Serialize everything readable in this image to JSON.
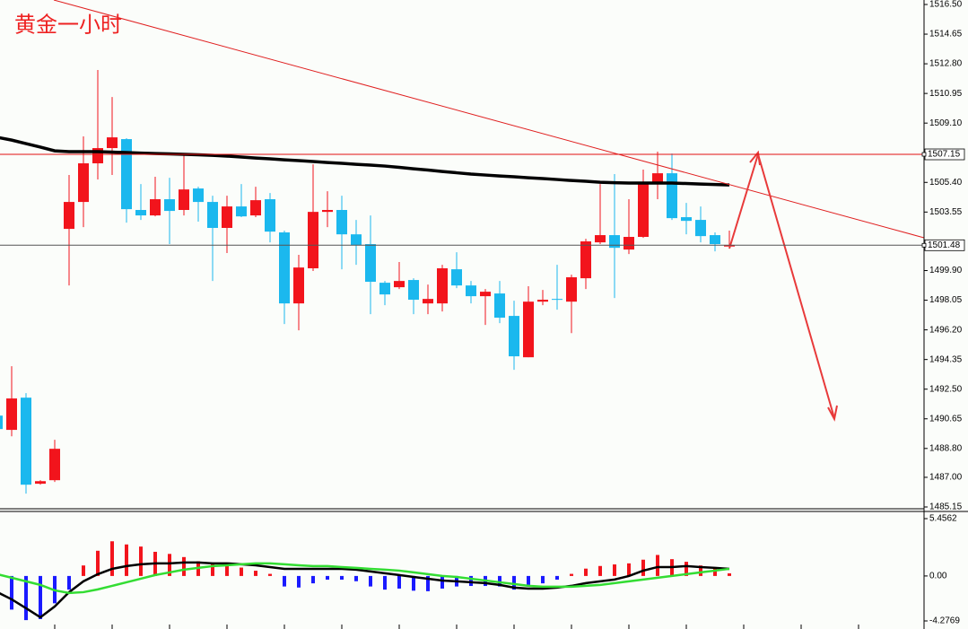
{
  "chart_data": [
    {
      "type": "candlestick",
      "title": "黄金一小时",
      "open": [
        1490.85,
        1489.96,
        1491.97,
        1486.6,
        1486.82,
        1502.5,
        1504.18,
        1506.59,
        1507.54,
        1508.1,
        1503.68,
        1503.34,
        1504.35,
        1503.68,
        1505.02,
        1504.18,
        1502.56,
        1503.9,
        1503.34,
        1504.35,
        1502.28,
        1497.85,
        1500.04,
        1503.56,
        1503.68,
        1502.16,
        1501.55,
        1499.14,
        1498.86,
        1499.31,
        1497.85,
        1497.85,
        1499.98,
        1498.97,
        1498.3,
        1498.47,
        1497.07,
        1494.49,
        1497.96,
        1498.13,
        1497.96,
        1499.42,
        1501.66,
        1502.11,
        1501.21,
        1502.0,
        1505.36,
        1505.97,
        1503.23,
        1503.06,
        1502.11,
        1501.4
      ],
      "high": [
        1490.85,
        1493.93,
        1492.25,
        1486.82,
        1489.34,
        1505.86,
        1508.27,
        1512.41,
        1510.73,
        1508.16,
        1505.3,
        1505.75,
        1505.69,
        1507.09,
        1505.13,
        1504.57,
        1504.57,
        1505.3,
        1505.13,
        1504.74,
        1502.39,
        1500.88,
        1506.53,
        1504.85,
        1504.57,
        1503.06,
        1503.34,
        1499.25,
        1500.43,
        1499.42,
        1499.03,
        1500.26,
        1501.04,
        1499.25,
        1498.75,
        1499.25,
        1498.02,
        1498.92,
        1498.69,
        1500.26,
        1499.64,
        1501.88,
        1505.3,
        1505.92,
        1504.35,
        1506.2,
        1507.32,
        1507.2,
        1504.12,
        1503.9,
        1502.28,
        1502.39
      ],
      "low": [
        1490.01,
        1489.56,
        1485.98,
        1486.54,
        1486.71,
        1498.97,
        1502.61,
        1505.58,
        1505.86,
        1502.89,
        1503.06,
        1503.28,
        1501.55,
        1503.34,
        1502.95,
        1499.25,
        1500.99,
        1503.23,
        1503.23,
        1501.66,
        1496.56,
        1496.17,
        1499.87,
        1502.61,
        1499.98,
        1500.26,
        1497.18,
        1497.74,
        1498.75,
        1497.18,
        1497.18,
        1497.35,
        1498.8,
        1497.85,
        1496.51,
        1496.62,
        1493.71,
        1494.49,
        1497.74,
        1497.46,
        1496.0,
        1498.75,
        1501.55,
        1498.19,
        1500.93,
        1501.94,
        1504.35,
        1503.06,
        1502.16,
        1501.66,
        1501.1,
        1501.27
      ],
      "close": [
        1490.01,
        1491.92,
        1486.54,
        1486.76,
        1488.78,
        1504.18,
        1506.59,
        1507.54,
        1508.21,
        1503.73,
        1503.34,
        1504.35,
        1503.62,
        1504.96,
        1504.18,
        1502.56,
        1503.9,
        1503.28,
        1504.29,
        1502.33,
        1497.85,
        1500.09,
        1503.56,
        1503.68,
        1502.16,
        1501.49,
        1499.2,
        1498.41,
        1499.25,
        1498.08,
        1498.13,
        1500.04,
        1498.97,
        1498.3,
        1498.58,
        1496.96,
        1494.55,
        1497.96,
        1498.08,
        1498.08,
        1499.48,
        1501.72,
        1502.11,
        1501.32,
        1502.0,
        1505.3,
        1505.97,
        1503.17,
        1503.0,
        1502.05,
        1501.55,
        1501.48
      ],
      "up_color": "#f2141c",
      "down_color": "#1bb8ee",
      "overlay": {
        "color": "#000000",
        "values": [
          1508.21,
          1508.04,
          1507.82,
          1507.6,
          1507.37,
          1507.32,
          1507.32,
          1507.32,
          1507.29,
          1507.26,
          1507.23,
          1507.2,
          1507.18,
          1507.15,
          1507.12,
          1507.09,
          1507.04,
          1506.98,
          1506.92,
          1506.87,
          1506.81,
          1506.76,
          1506.7,
          1506.64,
          1506.59,
          1506.53,
          1506.48,
          1506.42,
          1506.34,
          1506.25,
          1506.17,
          1506.08,
          1506.0,
          1505.92,
          1505.86,
          1505.8,
          1505.75,
          1505.69,
          1505.64,
          1505.58,
          1505.52,
          1505.47,
          1505.41,
          1505.38,
          1505.36,
          1505.36,
          1505.36,
          1505.36,
          1505.33,
          1505.3,
          1505.27,
          1505.24
        ]
      },
      "levels": [
        {
          "value": 1507.15,
          "color": "#e01010"
        },
        {
          "value": 1501.48,
          "color": "#555555"
        }
      ],
      "ylim": [
        1485.15,
        1516.5
      ],
      "yticks": [
        {
          "value": 1516.5,
          "label": "1516.50"
        },
        1514.65,
        {
          "value": 1512.8,
          "label": "1512.80"
        },
        1510.95,
        {
          "value": 1509.1,
          "label": "1509.10"
        },
        {
          "value": 1505.4,
          "label": "1505.40"
        },
        1503.55,
        {
          "value": 1499.9,
          "label": "1499.90"
        },
        1498.05,
        {
          "value": 1496.2,
          "label": "1496.20"
        },
        1494.35,
        {
          "value": 1492.5,
          "label": "1492.50"
        },
        1490.65,
        {
          "value": 1488.8,
          "label": "1488.80"
        },
        {
          "value": 1487,
          "label": "1487.00"
        },
        1485.15
      ]
    },
    {
      "type": "macd",
      "histogram": [
        -1.8,
        -3.2,
        -4.2,
        -4.1,
        -2.6,
        -1.3,
        1.0,
        2.4,
        3.3,
        3.0,
        2.8,
        2.3,
        2.1,
        1.8,
        1.4,
        1.2,
        1.0,
        0.8,
        0.5,
        0.2,
        -1.0,
        -1.1,
        -0.7,
        -0.35,
        -0.35,
        -0.5,
        -1.0,
        -1.3,
        -1.2,
        -1.4,
        -1.45,
        -1.2,
        -1.0,
        -0.95,
        -0.95,
        -1.0,
        -1.3,
        -0.85,
        -0.7,
        -0.35,
        0.2,
        0.7,
        0.95,
        1.1,
        1.2,
        1.55,
        2.0,
        1.6,
        1.35,
        1.0,
        0.7,
        0.25
      ],
      "pos_color": "#f2141c",
      "neg_color": "#1a1aff",
      "lines": [
        {
          "color": "#000000",
          "values": [
            -1.54,
            -2.22,
            -3.07,
            -3.93,
            -2.9,
            -1.54,
            -0.51,
            0.17,
            0.68,
            0.94,
            1.11,
            1.2,
            1.2,
            1.28,
            1.28,
            1.2,
            1.2,
            1.11,
            1.02,
            0.85,
            0.68,
            0.68,
            0.68,
            0.68,
            0.68,
            0.6,
            0.43,
            0.26,
            0.09,
            -0.09,
            -0.26,
            -0.43,
            -0.51,
            -0.6,
            -0.68,
            -0.85,
            -1.11,
            -1.2,
            -1.2,
            -1.11,
            -0.94,
            -0.68,
            -0.51,
            -0.34,
            0.0,
            0.51,
            0.85,
            0.85,
            0.94,
            0.85,
            0.77,
            0.68
          ]
        },
        {
          "color": "#33dd33",
          "values": [
            0.17,
            -0.17,
            -0.51,
            -0.85,
            -1.37,
            -1.62,
            -1.54,
            -1.28,
            -0.94,
            -0.6,
            -0.26,
            0.09,
            0.34,
            0.6,
            0.77,
            0.94,
            1.02,
            1.11,
            1.2,
            1.2,
            1.11,
            1.02,
            0.94,
            0.94,
            0.85,
            0.77,
            0.68,
            0.6,
            0.51,
            0.34,
            0.17,
            0.0,
            -0.09,
            -0.26,
            -0.43,
            -0.6,
            -0.77,
            -0.94,
            -1.02,
            -1.02,
            -1.02,
            -0.94,
            -0.85,
            -0.68,
            -0.51,
            -0.34,
            -0.17,
            0.0,
            0.17,
            0.34,
            0.51,
            0.68
          ]
        }
      ],
      "ylim": [
        -4.2769,
        5.4562
      ],
      "yticks": [
        5.4562,
        {
          "value": 0,
          "label": "0.00"
        },
        -4.2769
      ]
    }
  ]
}
